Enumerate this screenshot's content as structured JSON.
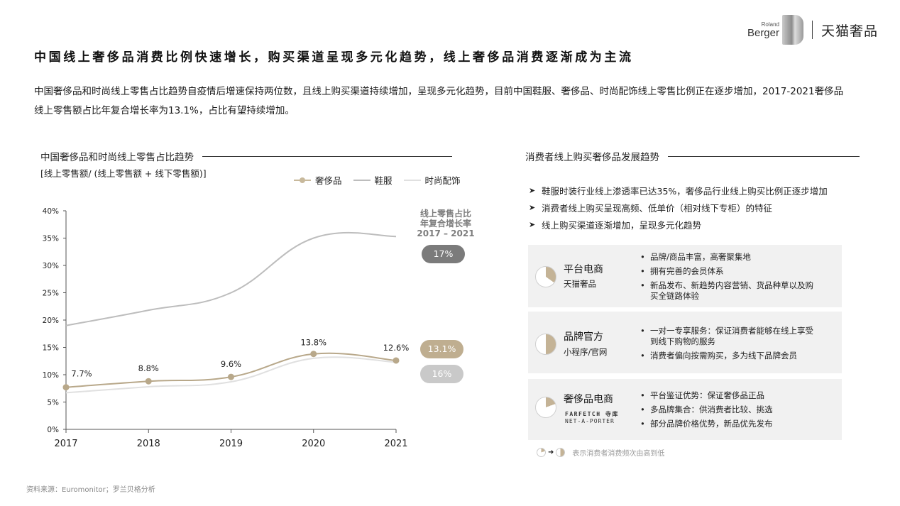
{
  "logo": {
    "roland": "Roland",
    "berger": "Berger",
    "partner": "天猫奢品"
  },
  "title": "中国线上奢侈品消费比例快速增长，购买渠道呈现多元化趋势，线上奢侈品消费逐渐成为主流",
  "description": "中国奢侈品和时尚线上零售占比趋势自疫情后增速保持两位数，且线上购买渠道持续增加，呈现多元化趋势，目前中国鞋服、奢侈品、时尚配饰线上零售比例正在逐步增加，2017-2021奢侈品线上零售额占比年复合增长率为13.1%，占比有望持续增加。",
  "left_section": {
    "heading": "中国奢侈品和时尚线上零售占比趋势",
    "subheading": "[线上零售额/ (线上零售额 + 线下零售额)]",
    "cagr_title_lines": [
      "线上零售占比",
      "年复合增长率",
      "2017 – 2021"
    ],
    "cagr_pills": [
      {
        "label": "17%",
        "series": "鞋服",
        "color": "#7b7b7b"
      },
      {
        "label": "13.1%",
        "series": "奢侈品",
        "color": "#bfae90"
      },
      {
        "label": "16%",
        "series": "时尚配饰",
        "color": "#c9c9c9"
      }
    ]
  },
  "chart_data": {
    "type": "line",
    "title": "中国奢侈品和时尚线上零售占比趋势",
    "subtitle": "[线上零售额/ (线上零售额 + 线下零售额)]",
    "xlabel": "",
    "ylabel": "",
    "x": [
      "2017",
      "2018",
      "2019",
      "2020",
      "2021"
    ],
    "y_ticks": [
      "0%",
      "5%",
      "10%",
      "15%",
      "20%",
      "25%",
      "30%",
      "35%",
      "40%"
    ],
    "ylim": [
      0,
      40
    ],
    "grid": false,
    "legend_position": "top-right",
    "series": [
      {
        "name": "奢侈品",
        "values": [
          7.7,
          8.8,
          9.6,
          13.8,
          12.6
        ],
        "labels": [
          "7.7%",
          "8.8%",
          "9.6%",
          "13.8%",
          "12.6%"
        ],
        "color": "#b8a88a",
        "markers": true,
        "cagr": "13.1%"
      },
      {
        "name": "鞋服",
        "values": [
          19.0,
          21.8,
          25.0,
          35.0,
          35.3
        ],
        "color": "#bdbdbd",
        "markers": false,
        "cagr": "17%"
      },
      {
        "name": "时尚配饰",
        "values": [
          6.7,
          7.8,
          8.7,
          13.0,
          12.3
        ],
        "color": "#e0e0e0",
        "markers": false,
        "cagr": "16%"
      }
    ],
    "annotations": [
      "线上零售占比年复合增长率 2017 – 2021"
    ]
  },
  "right_section": {
    "heading": "消费者线上购买奢侈品发展趋势",
    "bullets": [
      "鞋服时装行业线上渗透率已达35%，奢侈品行业线上购买比例正逐步增加",
      "消费者线上购买呈现高频、低单价（相对线下专柜）的特征",
      "线上购买渠道逐渐增加，呈现多元化趋势"
    ],
    "bullet_icon": "arrowhead-icon",
    "channels": [
      {
        "name": "平台电商",
        "sub": "天猫奢品",
        "frequency_icon": "pie-low-fill-icon",
        "points": [
          "品牌/商品丰富，高奢聚集地",
          "拥有完善的会员体系",
          "新品发布、新趋势内容营销、货品种草以及购买全链路体验"
        ]
      },
      {
        "name": "品牌官方",
        "sub": "小程序/官网",
        "frequency_icon": "pie-half-fill-icon",
        "points": [
          "一对一专享服务：保证消费者能够在线上享受到线下购物的服务",
          "消费者偏向按需购买，多为线下品牌会员"
        ]
      },
      {
        "name": "奢侈品电商",
        "sub": "FARFETCH 寺库",
        "sub2": "NET-A-PORTER",
        "frequency_icon": "pie-small-fill-icon",
        "points": [
          "平台鉴证优势：保证奢侈品正品",
          "多品牌集合：供消费者比较、挑选",
          "部分品牌价格优势，新品优先发布"
        ]
      }
    ],
    "frequency_note": "表示消费者消费频次由高到低"
  },
  "colors": {
    "accent_gold": "#b8a88a",
    "dark_gray": "#7b7b7b",
    "card_bg": "#f1f1f1"
  },
  "source": "资料来源：Euromonitor；罗兰贝格分析"
}
